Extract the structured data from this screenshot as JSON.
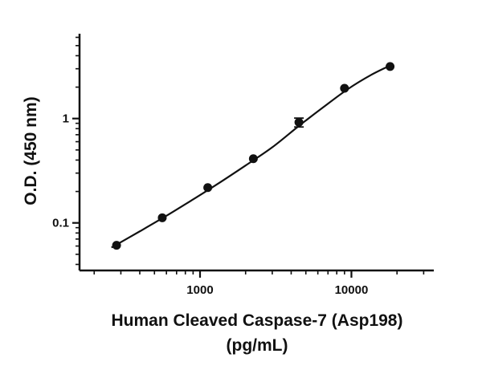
{
  "chart_data": {
    "type": "scatter",
    "title": "",
    "xlabel_line1": "Human Cleaved Caspase-7 (Asp198)",
    "xlabel_line2": "(pg/mL)",
    "ylabel": "O.D. (450 nm)",
    "x_scale": "log",
    "y_scale": "log",
    "xlim": [
      160,
      35000
    ],
    "ylim": [
      0.035,
      6.5
    ],
    "x_ticks": [
      {
        "value": 1000,
        "label": "1000"
      },
      {
        "value": 10000,
        "label": "10000"
      }
    ],
    "y_ticks": [
      {
        "value": 0.1,
        "label": "0.1"
      },
      {
        "value": 1,
        "label": "1"
      }
    ],
    "grid": false,
    "legend": "none",
    "colors": {
      "marker": "#111111",
      "line": "#111111",
      "axis": "#111111"
    },
    "series": [
      {
        "x": [
          281,
          563,
          1125,
          2250,
          4500,
          9000,
          18000
        ],
        "y": [
          0.061,
          0.112,
          0.218,
          0.412,
          0.92,
          1.95,
          3.15
        ],
        "y_err": [
          0,
          0,
          0,
          0,
          0.09,
          0,
          0
        ]
      }
    ],
    "fit_curve": {
      "type": "4PL",
      "x": [
        260,
        400,
        600,
        900,
        1300,
        2000,
        3000,
        4500,
        6500,
        9500,
        13500,
        18500
      ],
      "y": [
        0.058,
        0.083,
        0.117,
        0.168,
        0.235,
        0.355,
        0.53,
        0.85,
        1.28,
        1.92,
        2.62,
        3.28
      ]
    }
  }
}
